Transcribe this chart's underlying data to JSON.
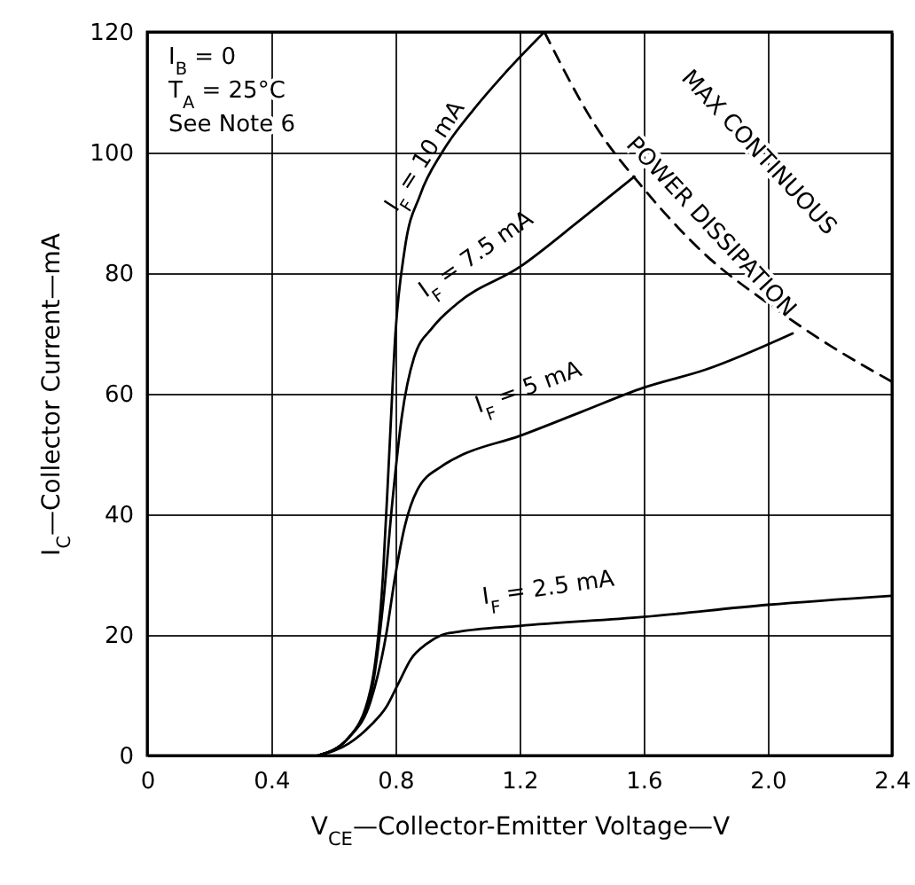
{
  "chart_data": {
    "type": "line",
    "xlabel": "V$_{CE}$—Collector-Emitter Voltage—V",
    "ylabel": "I$_{C}$—Collector Current—mA",
    "xlim": [
      0,
      2.4
    ],
    "xticks": [
      0,
      0.4,
      0.8,
      1.2,
      1.6,
      {
        "value": 2,
        "label": "2.0"
      },
      2.4
    ],
    "ylim": [
      0,
      120
    ],
    "yticks": [
      0,
      20,
      40,
      60,
      80,
      100,
      120
    ],
    "grid": true,
    "marker": "none",
    "series": [
      {
        "name": "I$_{F}$ = 2.5 mA",
        "color": "#000000",
        "line_style": "solid",
        "x": [
          0.55,
          0.65,
          0.72,
          0.77,
          0.81,
          0.85,
          0.9,
          0.95,
          1.0,
          1.2,
          1.6,
          2.0,
          2.4
        ],
        "values": [
          0,
          2,
          5,
          8,
          12,
          16,
          18.5,
          20,
          20.5,
          21.5,
          23,
          25,
          26.5
        ]
      },
      {
        "name": "I$_{F}$ = 5 mA",
        "color": "#000000",
        "line_style": "solid",
        "x": [
          0.55,
          0.65,
          0.72,
          0.77,
          0.8,
          0.83,
          0.87,
          0.95,
          1.0,
          1.2,
          1.4,
          1.6,
          1.8,
          2.08
        ],
        "values": [
          0,
          3,
          9,
          20,
          30,
          38,
          44,
          48,
          49.5,
          53,
          57,
          61,
          64,
          70
        ]
      },
      {
        "name": "I$_{F}$ = 7.5 mA",
        "color": "#000000",
        "line_style": "solid",
        "x": [
          0.55,
          0.65,
          0.72,
          0.76,
          0.79,
          0.82,
          0.86,
          0.92,
          1.0,
          1.2,
          1.4,
          1.57
        ],
        "values": [
          0,
          3,
          10,
          25,
          42,
          56,
          66,
          71,
          75,
          81,
          89,
          96
        ]
      },
      {
        "name": "I$_{F}$ = 10 mA",
        "color": "#000000",
        "line_style": "solid",
        "x": [
          0.55,
          0.65,
          0.72,
          0.76,
          0.78,
          0.8,
          0.83,
          0.88,
          0.95,
          1.05,
          1.15,
          1.28
        ],
        "values": [
          0,
          3,
          11,
          30,
          50,
          70,
          84,
          93,
          100,
          107,
          113,
          120
        ]
      },
      {
        "color": "#000000",
        "line_style": "dashed",
        "x": [
          1.28,
          1.45,
          1.6,
          1.8,
          2.0,
          2.2,
          2.4
        ],
        "values": [
          120,
          104,
          94,
          83,
          75,
          68,
          62
        ]
      }
    ],
    "annotations": [
      "I$_{B}$ = 0",
      "T$_{A}$ = 25°C",
      "See Note 6",
      "MAX CONTINUOUS",
      "POWER DISSIPATION"
    ]
  }
}
